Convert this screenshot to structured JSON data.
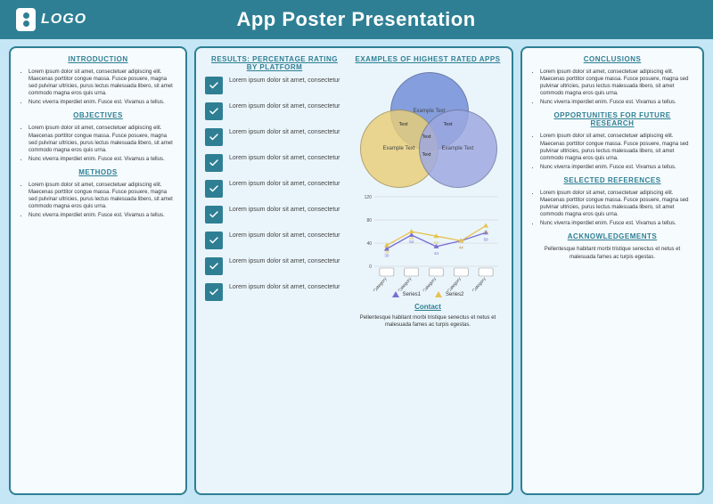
{
  "header": {
    "logo_text": "LOGO",
    "title": "App Poster Presentation"
  },
  "colors": {
    "accent": "#2e7f94",
    "panel_bg": "#f6fbfd",
    "mid_bg": "#eaf5fb",
    "poster_bg": "#c5e6f5",
    "venn_top": "#6f8bd6",
    "venn_left": "#e9cf78",
    "venn_right": "#9da8e2",
    "series1_color": "#7a6fd1",
    "series2_color": "#e7c251",
    "grid_color": "#cccccc"
  },
  "left": {
    "sections": [
      {
        "title": "INTRODUCTION",
        "items": [
          "Lorem ipsum dolor sit amet, consectetuer adipiscing elit. Maecenas porttitor congue massa. Fusce posuere, magna sed pulvinar ultricies, purus lectus malesuada libero, sit amet commodo magna eros quis urna.",
          "Nunc viverra imperdiet enim. Fusce est. Vivamus a tellus."
        ]
      },
      {
        "title": "OBJECTIVES",
        "items": [
          "Lorem ipsum dolor sit amet, consectetuer adipiscing elit. Maecenas porttitor congue massa. Fusce posuere, magna sed pulvinar ultricies, purus lectus malesuada libero, sit amet commodo magna eros quis urna.",
          "Nunc viverra imperdiet enim. Fusce est. Vivamus a tellus."
        ]
      },
      {
        "title": "METHODS",
        "items": [
          "Lorem ipsum dolor sit amet, consectetuer adipiscing elit. Maecenas porttitor congue massa. Fusce posuere, magna sed pulvinar ultricies, purus lectus malesuada libero, sit amet commodo magna eros quis urna.",
          "Nunc viverra imperdiet enim. Fusce est. Vivamus a tellus."
        ]
      }
    ]
  },
  "mid": {
    "results_title": "RESULTS: PERCENTAGE RATING BY PLATFORM",
    "check_items": [
      "Lorem ipsum dolor sit amet, consectetur",
      "Lorem ipsum dolor sit amet, consectetur",
      "Lorem ipsum dolor sit amet, consectetur",
      "Lorem ipsum dolor sit amet, consectetur",
      "Lorem ipsum dolor sit amet, consectetur",
      "Lorem ipsum dolor sit amet, consectetur",
      "Lorem ipsum dolor sit amet, consectetur",
      "Lorem ipsum dolor sit amet, consectetur",
      "Lorem ipsum dolor sit amet, consectetur"
    ],
    "examples_title": "EXAMPLES OF HIGHEST RATED APPS",
    "venn": {
      "top": "Example Text",
      "left": "Example Text",
      "right": "Example Text",
      "overlap_a": "Text",
      "overlap_b": "Text",
      "overlap_c": "Text",
      "center": "Text"
    },
    "chart": {
      "type": "line",
      "ylim": [
        0,
        120
      ],
      "ytick_step": 40,
      "categories": [
        "Category",
        "Category",
        "Category",
        "Category",
        "Category"
      ],
      "series": [
        {
          "name": "Series1",
          "values": [
            30,
            54,
            34,
            44,
            58
          ],
          "color": "#7a6fd1"
        },
        {
          "name": "Series2",
          "values": [
            36,
            60,
            52,
            44,
            70
          ],
          "color": "#e7c251"
        }
      ],
      "label_fontsize": 6
    },
    "contact_title": "Contact",
    "contact_text": "Pellentesque habitant morbi tristique senectus et netus et malesuada fames ac turpis egestas."
  },
  "right": {
    "sections": [
      {
        "title": "CONCLUSIONS",
        "items": [
          "Lorem ipsum dolor sit amet, consectetuer adipiscing elit. Maecenas porttitor congue massa. Fusce posuere, magna sed pulvinar ultricies, purus lectus malesuada libero, sit amet commodo magna eros quis urna.",
          "Nunc viverra imperdiet enim. Fusce est. Vivamus a tellus."
        ]
      },
      {
        "title": "OPPORTUNITIES FOR FUTURE RESEARCH",
        "items": [
          "Lorem ipsum dolor sit amet, consectetuer adipiscing elit. Maecenas porttitor congue massa. Fusce posuere, magna sed pulvinar ultricies, purus lectus malesuada libero, sit amet commodo magna eros quis urna.",
          "Nunc viverra imperdiet enim. Fusce est. Vivamus a tellus."
        ]
      },
      {
        "title": "SELECTED REFERENCES",
        "items": [
          "Lorem ipsum dolor sit amet, consectetuer adipiscing elit. Maecenas porttitor congue massa. Fusce posuere, magna sed pulvinar ultricies, purus lectus malesuada libero, sit amet commodo magna eros quis urna.",
          "Nunc viverra imperdiet enim. Fusce est. Vivamus a tellus."
        ]
      }
    ],
    "ack_title": "ACKNOWLEDGEMENTS",
    "ack_text": "Pellentesque habitant morbi tristique senectus et netus et malesuada fames ac turpis egestas."
  }
}
